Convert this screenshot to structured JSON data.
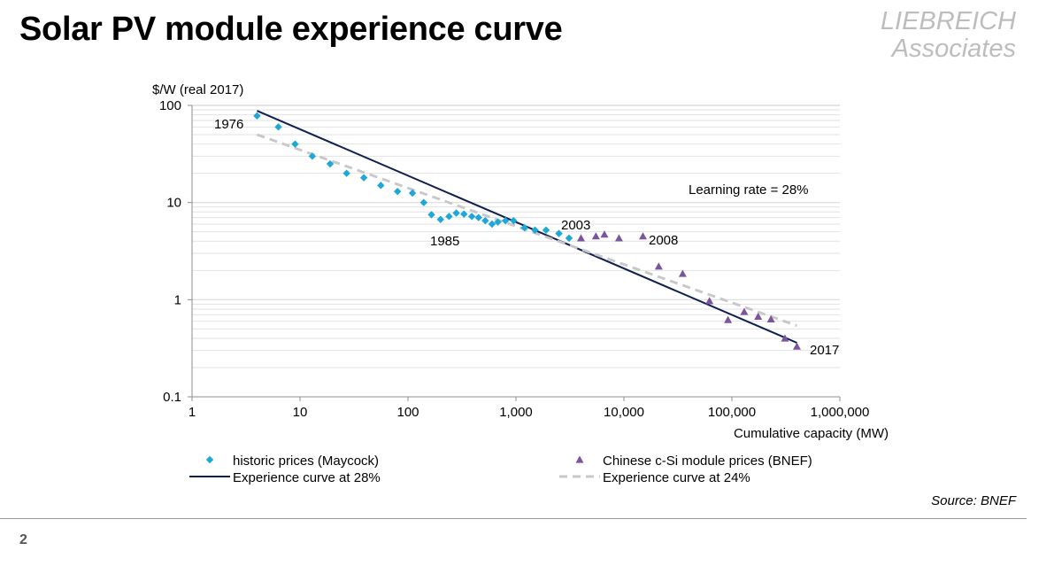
{
  "title": "Solar PV module experience curve",
  "brand": {
    "line1": "LIEBREICH",
    "line2": "Associates"
  },
  "source": "Source: BNEF",
  "page_number": "2",
  "chart_data": {
    "type": "scatter",
    "ylabel": "$/W (real 2017)",
    "xlabel": "Cumulative capacity (MW)",
    "xscale": "log",
    "yscale": "log",
    "xlim": [
      1,
      1000000
    ],
    "ylim": [
      0.1,
      100
    ],
    "x_tick_labels": [
      "1",
      "10",
      "100",
      "1,000",
      "10,000",
      "100,000",
      "1,000,000"
    ],
    "y_tick_labels": [
      "100",
      "10",
      "1",
      "0.1"
    ],
    "grid": "horizontal minor",
    "legend_placement": "bottom",
    "colors": {
      "maycock": "#1ea7d8",
      "bnef": "#7a559e",
      "curve28": "#0f2050",
      "curve24": "#c8c8c8"
    },
    "annotations": [
      {
        "text": "1976",
        "x": 4,
        "y": 78
      },
      {
        "text": "1985",
        "x": 200,
        "y": 6.5
      },
      {
        "text": "2003",
        "x": 2500,
        "y": 4.8
      },
      {
        "text": "2008",
        "x": 15000,
        "y": 4.3
      },
      {
        "text": "2017",
        "x": 400000,
        "y": 0.33
      },
      {
        "text": "Learning rate = 28%",
        "x": 0,
        "y": 0
      }
    ],
    "series": [
      {
        "name": "historic prices (Maycock)",
        "marker": "diamond",
        "points": [
          [
            4,
            78
          ],
          [
            6.3,
            60
          ],
          [
            9,
            40
          ],
          [
            13,
            30
          ],
          [
            19,
            25
          ],
          [
            27,
            20
          ],
          [
            39,
            18
          ],
          [
            56,
            15
          ],
          [
            80,
            13
          ],
          [
            110,
            12.5
          ],
          [
            140,
            10
          ],
          [
            165,
            7.5
          ],
          [
            200,
            6.7
          ],
          [
            240,
            7.2
          ],
          [
            280,
            7.8
          ],
          [
            330,
            7.6
          ],
          [
            390,
            7.2
          ],
          [
            450,
            7.0
          ],
          [
            520,
            6.5
          ],
          [
            600,
            6.0
          ],
          [
            680,
            6.3
          ],
          [
            800,
            6.5
          ],
          [
            950,
            6.5
          ],
          [
            1200,
            5.5
          ],
          [
            1500,
            5.2
          ],
          [
            1900,
            5.2
          ],
          [
            2500,
            4.8
          ],
          [
            3100,
            4.3
          ]
        ]
      },
      {
        "name": "Chinese c-Si module prices (BNEF)",
        "marker": "triangle",
        "points": [
          [
            4000,
            4.3
          ],
          [
            5500,
            4.5
          ],
          [
            6600,
            4.7
          ],
          [
            9000,
            4.3
          ],
          [
            15000,
            4.5
          ],
          [
            21000,
            2.2
          ],
          [
            35000,
            1.85
          ],
          [
            62000,
            0.97
          ],
          [
            92000,
            0.62
          ],
          [
            130000,
            0.75
          ],
          [
            175000,
            0.67
          ],
          [
            230000,
            0.63
          ],
          [
            310000,
            0.4
          ],
          [
            400000,
            0.33
          ]
        ]
      },
      {
        "name": "Experience curve at 28%",
        "style": "solid-line",
        "points": [
          [
            4,
            88
          ],
          [
            400000,
            0.36
          ]
        ]
      },
      {
        "name": "Experience curve at 24%",
        "style": "dashed-line",
        "points": [
          [
            4,
            50
          ],
          [
            400000,
            0.54
          ]
        ]
      }
    ]
  }
}
